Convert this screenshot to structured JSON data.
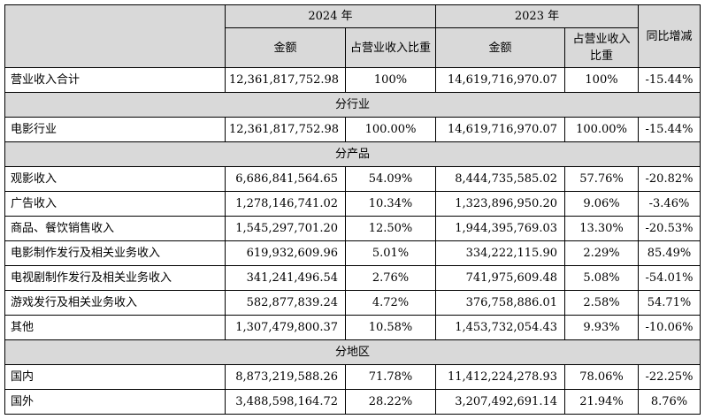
{
  "header": {
    "y2024": "2024 年",
    "y2023": "2023 年",
    "yoy": "同比增减",
    "amount": "金额",
    "share": "占营业收入比重"
  },
  "total": {
    "label": "营业收入合计",
    "a2024": "12,361,817,752.98",
    "s2024": "100%",
    "a2023": "14,619,716,970.07",
    "s2023": "100%",
    "yoy": "-15.44%"
  },
  "sections": {
    "industry": "分行业",
    "product": "分产品",
    "region": "分地区"
  },
  "industry_rows": [
    {
      "label": "电影行业",
      "a2024": "12,361,817,752.98",
      "s2024": "100.00%",
      "a2023": "14,619,716,970.07",
      "s2023": "100.00%",
      "yoy": "-15.44%"
    }
  ],
  "product_rows": [
    {
      "label": "观影收入",
      "a2024": "6,686,841,564.65",
      "s2024": "54.09%",
      "a2023": "8,444,735,585.02",
      "s2023": "57.76%",
      "yoy": "-20.82%"
    },
    {
      "label": "广告收入",
      "a2024": "1,278,146,741.02",
      "s2024": "10.34%",
      "a2023": "1,323,896,950.20",
      "s2023": "9.06%",
      "yoy": "-3.46%"
    },
    {
      "label": "商品、餐饮销售收入",
      "a2024": "1,545,297,701.20",
      "s2024": "12.50%",
      "a2023": "1,944,395,769.03",
      "s2023": "13.30%",
      "yoy": "-20.53%"
    },
    {
      "label": "电影制作发行及相关业务收入",
      "a2024": "619,932,609.96",
      "s2024": "5.01%",
      "a2023": "334,222,115.90",
      "s2023": "2.29%",
      "yoy": "85.49%"
    },
    {
      "label": "电视剧制作发行及相关业务收入",
      "a2024": "341,241,496.54",
      "s2024": "2.76%",
      "a2023": "741,975,609.48",
      "s2023": "5.08%",
      "yoy": "-54.01%"
    },
    {
      "label": "游戏发行及相关业务收入",
      "a2024": "582,877,839.24",
      "s2024": "4.72%",
      "a2023": "376,758,886.01",
      "s2023": "2.58%",
      "yoy": "54.71%"
    },
    {
      "label": "其他",
      "a2024": "1,307,479,800.37",
      "s2024": "10.58%",
      "a2023": "1,453,732,054.43",
      "s2023": "9.93%",
      "yoy": "-10.06%"
    }
  ],
  "region_rows": [
    {
      "label": "国内",
      "a2024": "8,873,219,588.26",
      "s2024": "71.78%",
      "a2023": "11,412,224,278.93",
      "s2023": "78.06%",
      "yoy": "-22.25%"
    },
    {
      "label": "国外",
      "a2024": "3,488,598,164.72",
      "s2024": "28.22%",
      "a2023": "3,207,492,691.14",
      "s2023": "21.94%",
      "yoy": "8.76%"
    }
  ]
}
